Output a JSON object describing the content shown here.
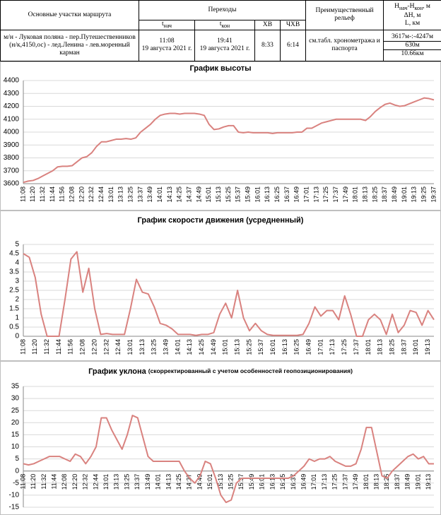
{
  "table": {
    "header": {
      "route": "Основные участки маршрута",
      "transitions": "Переходы",
      "relief": "Преимущественный рельеф",
      "t_start": {
        "t": "t",
        "sub": "нач"
      },
      "t_end": {
        "t": "t",
        "sub": "кон"
      },
      "hv": "ХВ",
      "chv": "ЧХВ",
      "elevation": {
        "h": "H",
        "start": "нач",
        "dash": "-H",
        "end": "кон",
        "unit": ", м"
      },
      "delta": "ΔH, м",
      "length": "L, км"
    },
    "row": {
      "route": "м/н - Луковая поляна - пер.Путешественников (н/к,4150,ос) - лед.Ленина - лев.моренный карман",
      "t_start": {
        "time": "11:08",
        "date": "19 августа 2021 г."
      },
      "t_end": {
        "time": "19:41",
        "date": "19 августа 2021 г."
      },
      "hv": "8:33",
      "chv": "6:14",
      "relief": "см.табл. хронометража и паспорта",
      "elevation": "3617м-:-4247м",
      "delta": "630м",
      "length": "10.66км"
    }
  },
  "chart_data": [
    {
      "type": "line",
      "title": "График высоты",
      "color": "#d9827f",
      "grid": true,
      "ylim": [
        3600,
        4400
      ],
      "yticks": [
        3600,
        3700,
        3800,
        3900,
        4000,
        4100,
        4200,
        4300,
        4400
      ],
      "categories": [
        "11:08",
        null,
        "11:20",
        null,
        "11:32",
        null,
        "11:44",
        null,
        "11:56",
        null,
        "12:08",
        null,
        "12:20",
        null,
        "12:32",
        null,
        "12:44",
        null,
        "13:01",
        null,
        "13:13",
        null,
        "13:25",
        null,
        "13:37",
        null,
        "13:49",
        null,
        "14:01",
        null,
        "14:13",
        null,
        "14:25",
        null,
        "14:37",
        null,
        "14:49",
        null,
        "15:01",
        null,
        "15:13",
        null,
        "15:25",
        null,
        "15:37",
        null,
        "15:49",
        null,
        "16:01",
        null,
        "16:13",
        null,
        "16:25",
        null,
        "16:37",
        null,
        "16:49",
        null,
        "17:01",
        null,
        "17:13",
        null,
        "17:25",
        null,
        "17:37",
        null,
        "17:49",
        null,
        "18:01",
        null,
        "18:13",
        null,
        "18:25",
        null,
        "18:37",
        null,
        "18:49",
        null,
        "19:01",
        null,
        "19:13",
        null,
        "19:25",
        null,
        "19:37"
      ],
      "values": [
        3610,
        3620,
        3625,
        3640,
        3660,
        3680,
        3700,
        3730,
        3735,
        3735,
        3740,
        3770,
        3800,
        3810,
        3840,
        3890,
        3925,
        3925,
        3935,
        3945,
        3945,
        3950,
        3945,
        3955,
        4000,
        4030,
        4060,
        4100,
        4130,
        4140,
        4145,
        4145,
        4140,
        4145,
        4145,
        4145,
        4140,
        4130,
        4060,
        4020,
        4025,
        4040,
        4050,
        4050,
        4000,
        3995,
        4000,
        3995,
        3995,
        3995,
        3995,
        3990,
        3995,
        3995,
        3995,
        3995,
        4000,
        4000,
        4030,
        4030,
        4050,
        4070,
        4080,
        4090,
        4100,
        4100,
        4100,
        4100,
        4100,
        4100,
        4090,
        4120,
        4160,
        4190,
        4215,
        4225,
        4210,
        4200,
        4205,
        4220,
        4235,
        4250,
        4265,
        4260,
        4250
      ]
    },
    {
      "type": "line",
      "title": "График скорости движения (усредненный)",
      "color": "#d9827f",
      "grid": true,
      "ylim": [
        0,
        5
      ],
      "yticks": [
        0,
        0.5,
        1,
        1.5,
        2,
        2.5,
        3,
        3.5,
        4,
        4.5,
        5
      ],
      "categories": [
        "11:08",
        null,
        "11:20",
        null,
        "11:32",
        null,
        "11:44",
        null,
        "11:56",
        null,
        "12:08",
        null,
        "12:20",
        null,
        "12:32",
        null,
        "12:44",
        null,
        "13:01",
        null,
        "13:13",
        null,
        "13:25",
        null,
        "13:49",
        null,
        "14:01",
        null,
        "14:13",
        null,
        "14:25",
        null,
        "14:49",
        null,
        "15:01",
        null,
        "15:13",
        null,
        "15:25",
        null,
        "15:37",
        null,
        "16:01",
        null,
        "16:13",
        null,
        "16:25",
        null,
        "16:49",
        null,
        "17:01",
        null,
        "17:13",
        null,
        "17:25",
        null,
        "17:37",
        null,
        "18:01",
        null,
        "18:13",
        null,
        "18:25",
        null,
        "18:37",
        null,
        "19:01",
        null,
        "19:13",
        null
      ],
      "values": [
        4.5,
        4.3,
        3.2,
        1.2,
        0,
        0,
        0,
        2.0,
        4.2,
        4.6,
        2.4,
        3.7,
        1.5,
        0.1,
        0.15,
        0.1,
        0.1,
        0.1,
        1.5,
        3.1,
        2.4,
        2.3,
        1.6,
        0.7,
        0.6,
        0.4,
        0.1,
        0.1,
        0.1,
        0.05,
        0.1,
        0.1,
        0.2,
        1.2,
        1.8,
        1.0,
        2.5,
        1.0,
        0.3,
        0.7,
        0.3,
        0.1,
        0.05,
        0.05,
        0.05,
        0.05,
        0.05,
        0.1,
        0.7,
        1.6,
        1.1,
        1.4,
        1.4,
        0.9,
        2.2,
        1.2,
        0,
        0,
        0.9,
        1.2,
        0.9,
        0.1,
        1.2,
        0.2,
        0.6,
        1.4,
        1.3,
        0.6,
        1.4,
        0.9
      ]
    },
    {
      "type": "line",
      "title": "График уклона",
      "subtitle": "(скорректированный  с учетом особенностей  геопозиционирования)",
      "color": "#d9827f",
      "grid": true,
      "ylim": [
        -15,
        35
      ],
      "yticks": [
        -15,
        -10,
        -5,
        0,
        5,
        10,
        15,
        20,
        25,
        30,
        35
      ],
      "categories": [
        "11:08",
        null,
        "11:20",
        null,
        "11:32",
        null,
        "11:44",
        null,
        "12:08",
        null,
        "12:20",
        null,
        "12:32",
        null,
        "12:44",
        null,
        "13:01",
        null,
        "13:13",
        null,
        "13:25",
        null,
        "13:37",
        null,
        "13:49",
        null,
        "14:01",
        null,
        "14:13",
        null,
        "14:25",
        null,
        "14:37",
        null,
        "14:49",
        null,
        "15:01",
        null,
        "15:13",
        null,
        "15:25",
        null,
        "15:37",
        null,
        "15:49",
        null,
        "16:01",
        null,
        "16:13",
        null,
        "16:25",
        null,
        "16:37",
        null,
        "16:49",
        null,
        "17:01",
        null,
        "17:13",
        null,
        "17:25",
        null,
        "17:37",
        null,
        "17:49",
        null,
        "18:01",
        null,
        "18:13",
        null,
        "18:25",
        null,
        "18:37",
        null,
        "18:49",
        null,
        "19:01",
        null,
        "19:13",
        null
      ],
      "values": [
        3,
        2.5,
        3,
        4,
        5,
        6,
        6,
        6,
        5,
        4,
        7,
        6,
        3,
        6,
        10,
        22,
        22,
        17,
        13,
        9,
        15,
        23,
        22,
        14,
        6,
        4,
        4,
        4,
        4,
        4,
        4,
        0,
        -3,
        -5,
        -2,
        4,
        3,
        -3,
        -10,
        -13,
        -12,
        -5,
        -3,
        -3,
        -3,
        -3,
        -3,
        -3,
        -3,
        -3,
        -3,
        -3,
        -2,
        0,
        2,
        5,
        4,
        5,
        5,
        6,
        4,
        3,
        2,
        2,
        3,
        9,
        18,
        18,
        8,
        -2,
        -3,
        0,
        2,
        4,
        6,
        7,
        5,
        6,
        3,
        3
      ]
    }
  ]
}
